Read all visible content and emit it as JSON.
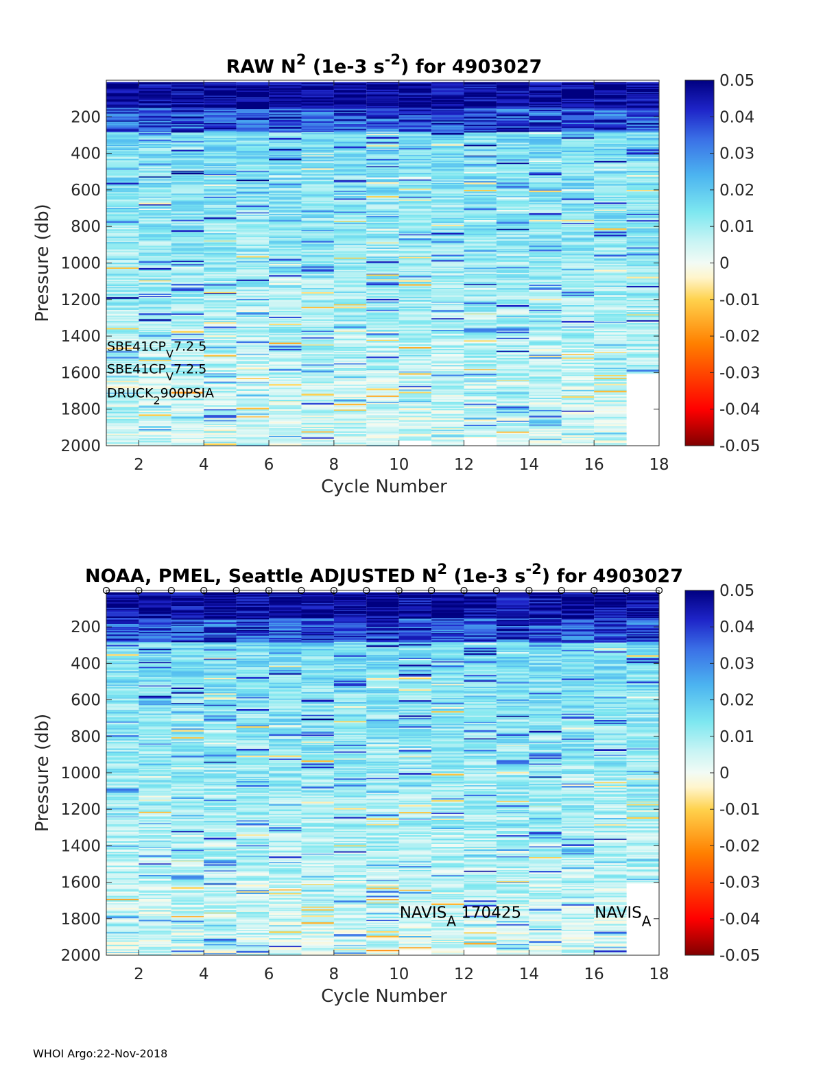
{
  "footer": "WHOI Argo:22-Nov-2018",
  "chart_data": [
    {
      "type": "heatmap",
      "title_parts": [
        "RAW N",
        "2",
        " (1e-3 s",
        "-2",
        ") for 4903027"
      ],
      "xlabel": "Cycle Number",
      "ylabel": "Pressure (db)",
      "xlim": [
        1,
        18
      ],
      "ylim": [
        0,
        2000
      ],
      "y_reversed": true,
      "xticks": [
        2,
        4,
        6,
        8,
        10,
        12,
        14,
        16,
        18
      ],
      "yticks": [
        200,
        400,
        600,
        800,
        1000,
        1200,
        1400,
        1600,
        1800,
        2000
      ],
      "colorbar": {
        "clim": [
          -0.05,
          0.05
        ],
        "ticks": [
          "0.05",
          "0.04",
          "0.03",
          "0.02",
          "0.01",
          "0",
          "-0.01",
          "-0.02",
          "-0.03",
          "-0.04",
          "-0.05"
        ]
      },
      "cycles": [
        1,
        2,
        3,
        4,
        5,
        6,
        7,
        8,
        9,
        10,
        11,
        12,
        13,
        14,
        15,
        16,
        17
      ],
      "max_pressure": [
        2000,
        2000,
        2000,
        2000,
        2000,
        2000,
        2000,
        2000,
        2000,
        1970,
        2000,
        1955,
        2000,
        2000,
        2000,
        2000,
        1605
      ],
      "annotations": [
        {
          "parts": [
            "SBE41CP",
            "V",
            "7.2.5"
          ],
          "x": 1,
          "y": 1480
        },
        {
          "parts": [
            "SBE41CP",
            "V",
            "7.2.5"
          ],
          "x": 1,
          "y": 1605
        },
        {
          "parts": [
            "DRUCK",
            "2",
            "900PSIA"
          ],
          "x": 1,
          "y": 1735
        }
      ],
      "markers": false
    },
    {
      "type": "heatmap",
      "title_parts": [
        "NOAA, PMEL, Seattle  ADJUSTED N",
        "2",
        " (1e-3 s",
        "-2",
        ") for 4903027"
      ],
      "xlabel": "Cycle Number",
      "ylabel": "Pressure (db)",
      "xlim": [
        1,
        18
      ],
      "ylim": [
        0,
        2000
      ],
      "y_reversed": true,
      "xticks": [
        2,
        4,
        6,
        8,
        10,
        12,
        14,
        16,
        18
      ],
      "yticks": [
        200,
        400,
        600,
        800,
        1000,
        1200,
        1400,
        1600,
        1800,
        2000
      ],
      "colorbar": {
        "clim": [
          -0.05,
          0.05
        ],
        "ticks": [
          "0.05",
          "0.04",
          "0.03",
          "0.02",
          "0.01",
          "0",
          "-0.01",
          "-0.02",
          "-0.03",
          "-0.04",
          "-0.05"
        ]
      },
      "cycles": [
        1,
        2,
        3,
        4,
        5,
        6,
        7,
        8,
        9,
        10,
        11,
        12,
        13,
        14,
        15,
        16,
        17
      ],
      "max_pressure": [
        2000,
        2000,
        2000,
        2000,
        2000,
        2000,
        2000,
        2000,
        2000,
        1970,
        2000,
        1955,
        2000,
        2000,
        2000,
        2000,
        1605
      ],
      "annotations": [
        {
          "parts": [
            "NAVIS",
            "A",
            " 170425"
          ],
          "x": 10,
          "y": 1795
        },
        {
          "parts": [
            "NAVIS",
            "A",
            ""
          ],
          "x": 16,
          "y": 1795
        }
      ],
      "markers": true,
      "marker_x": [
        1,
        2,
        3,
        4,
        5,
        6,
        7,
        8,
        9,
        10,
        11,
        12,
        13,
        14,
        15,
        16,
        17,
        18
      ]
    }
  ]
}
